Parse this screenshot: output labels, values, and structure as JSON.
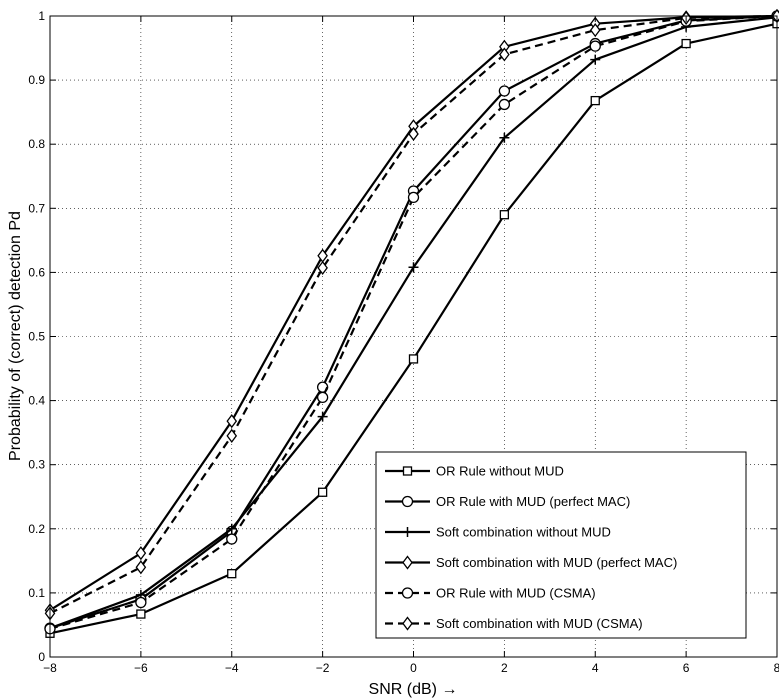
{
  "chart_data": {
    "type": "line",
    "xlabel": "SNR (dB) →",
    "ylabel": "Probability of (correct) detection Pd",
    "xlim": [
      -8,
      8
    ],
    "ylim": [
      0,
      1
    ],
    "xticks": [
      "−8",
      "−6",
      "−4",
      "−2",
      "0",
      "2",
      "4",
      "6",
      "8"
    ],
    "yticks": [
      "0",
      "0.1",
      "0.2",
      "0.3",
      "0.4",
      "0.5",
      "0.6",
      "0.7",
      "0.8",
      "0.9",
      "1"
    ],
    "grid": true,
    "legend_position": "bottom-right",
    "x": [
      -8,
      -6,
      -4,
      -2,
      0,
      2,
      4,
      6,
      8
    ],
    "series": [
      {
        "name": "OR Rule without MUD",
        "marker": "square",
        "dash": "solid",
        "values": [
          0.037,
          0.067,
          0.13,
          0.257,
          0.465,
          0.69,
          0.868,
          0.957,
          0.988
        ]
      },
      {
        "name": "OR Rule with MUD (perfect MAC)",
        "marker": "circle",
        "dash": "solid",
        "values": [
          0.045,
          0.09,
          0.196,
          0.421,
          0.727,
          0.883,
          0.957,
          0.993,
          1.0
        ]
      },
      {
        "name": "Soft combination without MUD",
        "marker": "plus",
        "dash": "solid",
        "values": [
          0.045,
          0.097,
          0.2,
          0.375,
          0.608,
          0.81,
          0.932,
          0.983,
          0.998
        ]
      },
      {
        "name": "Soft combination with MUD (perfect MAC)",
        "marker": "diamond",
        "dash": "solid",
        "values": [
          0.073,
          0.162,
          0.368,
          0.626,
          0.828,
          0.952,
          0.988,
          0.998,
          1.0
        ]
      },
      {
        "name": "OR Rule with MUD (CSMA)",
        "marker": "circle",
        "dash": "dashed",
        "values": [
          0.044,
          0.085,
          0.184,
          0.405,
          0.717,
          0.862,
          0.953,
          0.992,
          1.0
        ]
      },
      {
        "name": "Soft combination with MUD (CSMA)",
        "marker": "diamond",
        "dash": "dashed",
        "values": [
          0.068,
          0.14,
          0.345,
          0.607,
          0.816,
          0.94,
          0.978,
          0.997,
          1.0
        ]
      }
    ]
  }
}
